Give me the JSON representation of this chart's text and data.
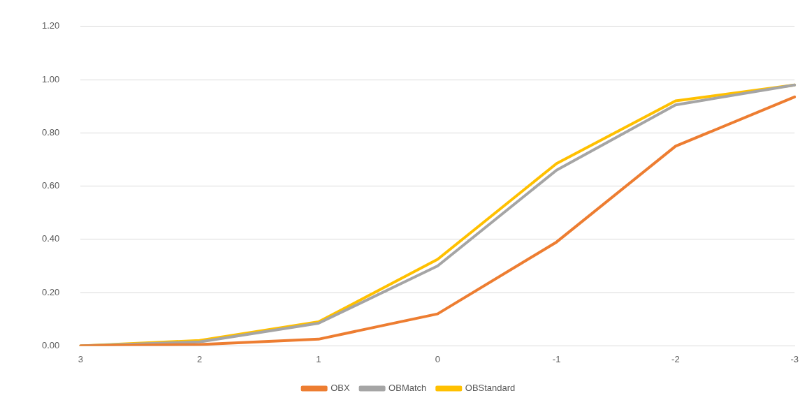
{
  "chart_data": {
    "type": "line",
    "categories": [
      "3",
      "2",
      "1",
      "0",
      "-1",
      "-2",
      "-3"
    ],
    "series": [
      {
        "name": "OBX",
        "color": "#ed7d31",
        "values": [
          0.0,
          0.005,
          0.025,
          0.12,
          0.39,
          0.75,
          0.935
        ]
      },
      {
        "name": "OBMatch",
        "color": "#a5a5a5",
        "values": [
          0.0,
          0.015,
          0.085,
          0.3,
          0.66,
          0.905,
          0.98
        ]
      },
      {
        "name": "OBStandard",
        "color": "#ffc000",
        "values": [
          0.0,
          0.02,
          0.09,
          0.325,
          0.685,
          0.92,
          0.98
        ]
      }
    ],
    "ylim": [
      0,
      1.2
    ],
    "yticks": [
      {
        "value": 0,
        "label": "0.00"
      },
      {
        "value": 0.2,
        "label": "0.20"
      },
      {
        "value": 0.4,
        "label": "0.40"
      },
      {
        "value": 0.6,
        "label": "0.60"
      },
      {
        "value": 0.8,
        "label": "0.80"
      },
      {
        "value": 1,
        "label": "1.00"
      },
      {
        "value": 1.2,
        "label": "1.20"
      }
    ],
    "grid": "y",
    "legend": "bottom",
    "marker": "none",
    "line_style": "solid"
  }
}
